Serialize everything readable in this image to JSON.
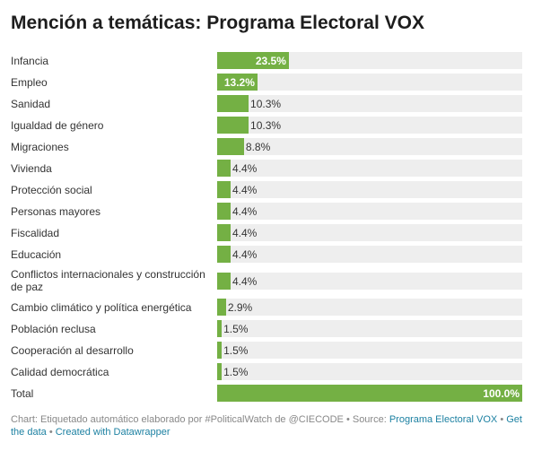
{
  "chart_data": {
    "type": "bar",
    "title": "Mención a temáticas: Programa Electoral VOX",
    "orientation": "horizontal",
    "xlim": [
      0,
      100
    ],
    "grid": false,
    "categories": [
      "Infancia",
      "Empleo",
      "Sanidad",
      "Igualdad de género",
      "Migraciones",
      "Vivienda",
      "Protección social",
      "Personas mayores",
      "Fiscalidad",
      "Educación",
      "Conflictos internacionales y construcción de paz",
      "Cambio climático y política energética",
      "Población reclusa",
      "Cooperación al desarrollo",
      "Calidad democrática",
      "Total"
    ],
    "values": [
      23.5,
      13.2,
      10.3,
      10.3,
      8.8,
      4.4,
      4.4,
      4.4,
      4.4,
      4.4,
      4.4,
      2.9,
      1.5,
      1.5,
      1.5,
      100.0
    ],
    "value_labels": [
      "23.5%",
      "13.2%",
      "10.3%",
      "10.3%",
      "8.8%",
      "4.4%",
      "4.4%",
      "4.4%",
      "4.4%",
      "4.4%",
      "4.4%",
      "2.9%",
      "1.5%",
      "1.5%",
      "1.5%",
      "100.0%"
    ],
    "bar_color": "#74b044",
    "track_color": "#eeeeee"
  },
  "footer": {
    "prefix": "Chart: Etiquetado automático elaborado por #PoliticalWatch de @CIECODE • Source: ",
    "source_link": "Programa Electoral VOX",
    "separator1": " • ",
    "get_data": "Get the data",
    "separator2": " • ",
    "created_with": "Created with Datawrapper"
  }
}
